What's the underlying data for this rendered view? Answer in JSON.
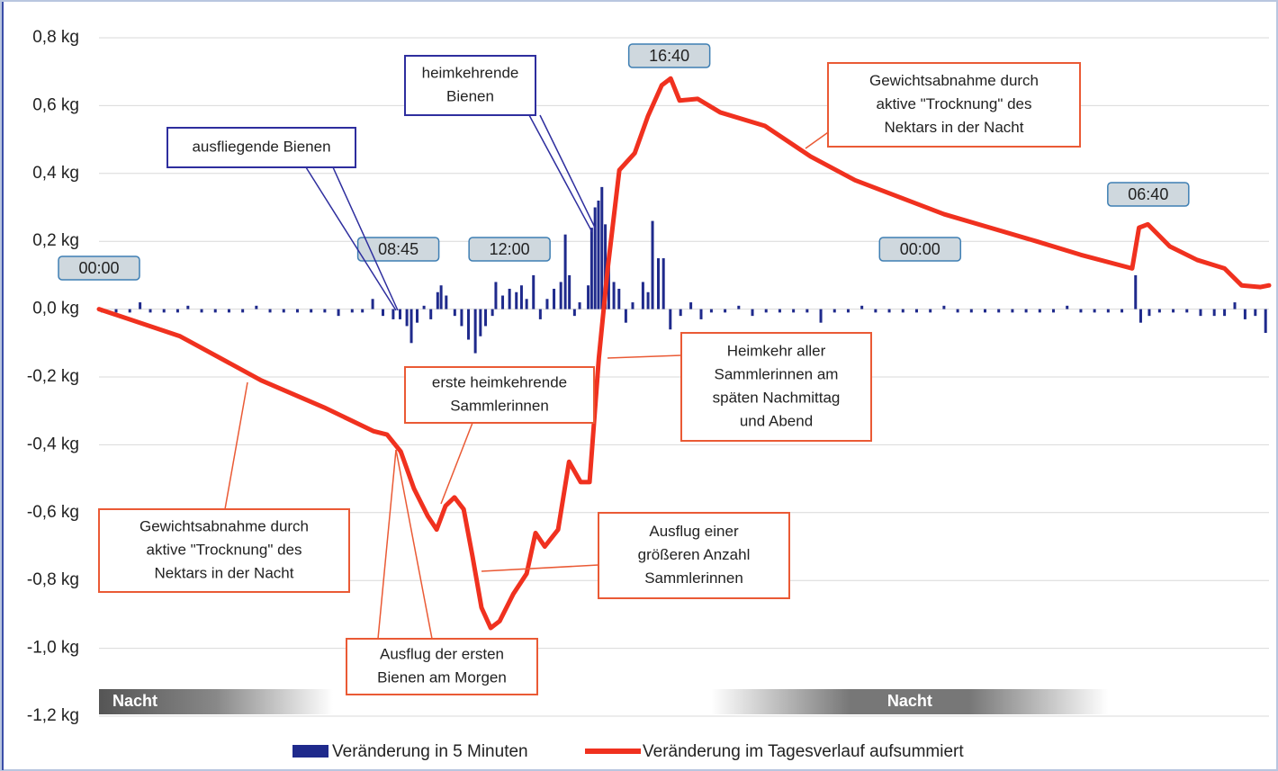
{
  "chart_data": {
    "type": "combo",
    "xlim": [
      0,
      34.2
    ],
    "ylim": [
      -1.2,
      0.8
    ],
    "yticks": [
      {
        "value": 0.8,
        "label": "0,8 kg"
      },
      {
        "value": 0.6,
        "label": "0,6 kg"
      },
      {
        "value": 0.4,
        "label": "0,4 kg"
      },
      {
        "value": 0.2,
        "label": "0,2 kg"
      },
      {
        "value": 0,
        "label": "0,0 kg"
      },
      {
        "value": -0.2,
        "label": "-0,2 kg"
      },
      {
        "value": -0.4,
        "label": "-0,4 kg"
      },
      {
        "value": -0.6,
        "label": "-0,6 kg"
      },
      {
        "value": -0.8,
        "label": "-0,8 kg"
      },
      {
        "value": -1.0,
        "label": "-1,0 kg"
      },
      {
        "value": -1.2,
        "label": "-1,2 kg"
      }
    ],
    "grid": true,
    "legend": "bottom",
    "series": [
      {
        "name": "Veränderung in 5 Minuten",
        "type": "bar",
        "color": "#1f2a8c",
        "x": [
          0.1,
          0.5,
          0.9,
          1.2,
          1.5,
          1.9,
          2.3,
          2.6,
          3.0,
          3.4,
          3.8,
          4.2,
          4.6,
          5.0,
          5.4,
          5.8,
          6.2,
          6.6,
          7.0,
          7.4,
          7.7,
          8.0,
          8.3,
          8.6,
          8.8,
          9.0,
          9.13,
          9.3,
          9.5,
          9.7,
          9.9,
          10.0,
          10.15,
          10.4,
          10.6,
          10.8,
          11.0,
          11.15,
          11.3,
          11.5,
          11.6,
          11.8,
          12.0,
          12.2,
          12.35,
          12.5,
          12.7,
          12.9,
          13.1,
          13.3,
          13.5,
          13.63,
          13.75,
          13.9,
          14.05,
          14.3,
          14.4,
          14.5,
          14.6,
          14.7,
          14.8,
          14.9,
          15.05,
          15.2,
          15.4,
          15.6,
          15.9,
          16.05,
          16.18,
          16.35,
          16.5,
          16.7,
          17.0,
          17.3,
          17.6,
          17.9,
          18.3,
          18.7,
          19.1,
          19.5,
          19.9,
          20.3,
          20.7,
          21.1,
          21.5,
          21.9,
          22.3,
          22.7,
          23.1,
          23.5,
          23.9,
          24.3,
          24.7,
          25.1,
          25.5,
          25.9,
          26.3,
          26.7,
          27.1,
          27.5,
          27.9,
          28.3,
          28.7,
          29.1,
          29.5,
          29.9,
          30.3,
          30.45,
          30.7,
          31.0,
          31.4,
          31.8,
          32.2,
          32.6,
          32.9,
          33.2,
          33.5,
          33.8,
          34.1
        ],
        "values": [
          -0.01,
          -0.01,
          -0.01,
          0.02,
          -0.01,
          -0.01,
          -0.01,
          0.01,
          -0.01,
          -0.01,
          -0.01,
          -0.01,
          0.01,
          -0.01,
          -0.01,
          -0.01,
          -0.01,
          -0.01,
          -0.02,
          -0.01,
          -0.01,
          0.03,
          -0.02,
          -0.03,
          -0.03,
          -0.05,
          -0.1,
          -0.04,
          0.01,
          -0.03,
          0.05,
          0.07,
          0.04,
          -0.02,
          -0.05,
          -0.09,
          -0.13,
          -0.08,
          -0.05,
          -0.02,
          0.08,
          0.04,
          0.06,
          0.05,
          0.07,
          0.03,
          0.1,
          -0.03,
          0.03,
          0.06,
          0.08,
          0.22,
          0.1,
          -0.02,
          0.02,
          0.07,
          0.24,
          0.3,
          0.32,
          0.36,
          0.25,
          0.15,
          0.08,
          0.06,
          -0.04,
          0.02,
          0.08,
          0.05,
          0.26,
          0.15,
          0.15,
          -0.06,
          -0.02,
          0.02,
          -0.03,
          -0.01,
          -0.01,
          0.01,
          -0.02,
          -0.01,
          -0.01,
          -0.01,
          -0.01,
          -0.04,
          -0.01,
          -0.01,
          0.01,
          -0.01,
          -0.01,
          -0.01,
          -0.01,
          -0.01,
          0.01,
          -0.01,
          -0.01,
          -0.01,
          -0.01,
          -0.01,
          -0.01,
          -0.01,
          -0.01,
          0.01,
          -0.01,
          -0.01,
          -0.01,
          -0.01,
          0.1,
          -0.04,
          -0.02,
          -0.01,
          -0.01,
          -0.01,
          -0.02,
          -0.02,
          -0.02,
          0.02,
          -0.03,
          -0.02,
          -0.07
        ]
      },
      {
        "name": "Veränderung im Tagesverlauf aufsummiert",
        "type": "line",
        "color": "#f0311f",
        "x": [
          0,
          2.37,
          4.74,
          6.58,
          8.03,
          8.42,
          8.82,
          9.21,
          9.61,
          9.87,
          10.13,
          10.39,
          10.66,
          10.92,
          11.18,
          11.45,
          11.71,
          12.11,
          12.5,
          12.76,
          13.03,
          13.42,
          13.74,
          14.08,
          14.34,
          14.61,
          14.87,
          15.21,
          15.66,
          16.05,
          16.45,
          16.71,
          16.97,
          17.5,
          18.16,
          19.47,
          20.8,
          22.1,
          23.4,
          24.7,
          26.05,
          27.4,
          28.7,
          30.2,
          30.4,
          30.66,
          31.3,
          32.1,
          32.9,
          33.4,
          33.95,
          34.2
        ],
        "values": [
          0,
          -0.08,
          -0.21,
          -0.29,
          -0.36,
          -0.37,
          -0.42,
          -0.53,
          -0.61,
          -0.65,
          -0.58,
          -0.555,
          -0.59,
          -0.73,
          -0.88,
          -0.94,
          -0.92,
          -0.84,
          -0.78,
          -0.66,
          -0.7,
          -0.65,
          -0.45,
          -0.51,
          -0.51,
          -0.145,
          0.12,
          0.41,
          0.46,
          0.57,
          0.66,
          0.68,
          0.615,
          0.62,
          0.58,
          0.54,
          0.45,
          0.38,
          0.33,
          0.28,
          0.24,
          0.2,
          0.16,
          0.12,
          0.24,
          0.25,
          0.185,
          0.145,
          0.12,
          0.07,
          0.065,
          0.07
        ]
      }
    ],
    "time_labels": [
      {
        "label": "00:00",
        "x": 0
      },
      {
        "label": "08:45",
        "x": 8.75
      },
      {
        "label": "12:00",
        "x": 12
      },
      {
        "label": "16:40",
        "x": 16.67
      },
      {
        "label": "00:00",
        "x": 24
      },
      {
        "label": "06:40",
        "x": 30.67
      }
    ],
    "night_labels": [
      {
        "label": "Nacht",
        "x": [
          0,
          6.84
        ]
      },
      {
        "label": "Nacht",
        "x": [
          17.9,
          29.5
        ]
      }
    ],
    "annotations": [
      {
        "lines": [
          "heimkehrende",
          "Bienen"
        ],
        "color": "#2e2e9e"
      },
      {
        "lines": [
          "ausfliegende Bienen"
        ],
        "color": "#2e2e9e"
      },
      {
        "lines": [
          "Gewichtsabnahme durch",
          "aktive \"Trocknung\" des",
          "Nektars in der Nacht"
        ],
        "color": "#ea5a35"
      },
      {
        "lines": [
          "erste heimkehrende",
          "Sammlerinnen"
        ],
        "color": "#ea5a35"
      },
      {
        "lines": [
          "Heimkehr aller",
          "Sammlerinnen am",
          "späten Nachmittag",
          "und Abend"
        ],
        "color": "#ea5a35"
      },
      {
        "lines": [
          "Gewichtsabnahme durch",
          "aktive \"Trocknung\" des",
          "Nektars in der Nacht"
        ],
        "color": "#ea5a35"
      },
      {
        "lines": [
          "Ausflug einer",
          "größeren Anzahl",
          "Sammlerinnen"
        ],
        "color": "#ea5a35"
      },
      {
        "lines": [
          "Ausflug der ersten",
          "Bienen am Morgen"
        ],
        "color": "#ea5a35"
      }
    ]
  }
}
